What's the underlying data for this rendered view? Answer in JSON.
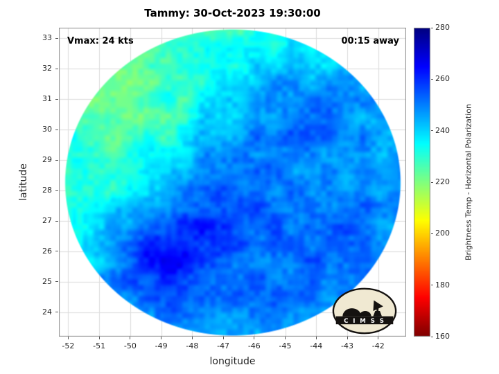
{
  "chart_data": {
    "type": "heatmap",
    "title": "Tammy: 30-Oct-2023 19:30:00",
    "xlabel": "longitude",
    "ylabel": "latitude",
    "annotations": {
      "vmax": "Vmax: 24 kts",
      "time_offset": "00:15 away"
    },
    "xlim": [
      -52.3,
      -41.1
    ],
    "ylim": [
      23.2,
      33.35
    ],
    "xticks": [
      -52,
      -51,
      -50,
      -49,
      -48,
      -47,
      -46,
      -45,
      -44,
      -43,
      -42
    ],
    "yticks": [
      24,
      25,
      26,
      27,
      28,
      29,
      30,
      31,
      32,
      33
    ],
    "grid_on": true,
    "colormap": "jet-reversed (low=dark red, high=dark blue)",
    "colorbar": {
      "label": "Brightness Temp - Horizontal Polarization",
      "min": 160,
      "max": 280,
      "ticks": [
        160,
        180,
        200,
        220,
        240,
        260,
        280
      ],
      "position": "right"
    },
    "swath_shape": "circular microwave swath filling the axes",
    "values_K": {
      "description": "Approximate brightness temperatures (K); rows from lat 33.35 (top) to 23.2 (bottom), cols from lon -52.3 (west) to -41.1 (east)",
      "rows": 12,
      "cols": 13,
      "grid": [
        [
          226,
          226,
          224,
          222,
          224,
          228,
          230,
          230,
          232,
          234,
          236,
          236,
          238
        ],
        [
          224,
          222,
          220,
          222,
          226,
          230,
          234,
          236,
          238,
          240,
          242,
          242,
          244
        ],
        [
          226,
          224,
          222,
          226,
          228,
          232,
          238,
          242,
          246,
          248,
          246,
          246,
          244
        ],
        [
          228,
          226,
          224,
          226,
          230,
          236,
          242,
          248,
          250,
          250,
          248,
          246,
          244
        ],
        [
          230,
          228,
          226,
          228,
          232,
          240,
          246,
          250,
          252,
          250,
          248,
          246,
          244
        ],
        [
          230,
          230,
          228,
          232,
          240,
          248,
          252,
          252,
          250,
          248,
          248,
          246,
          246
        ],
        [
          232,
          232,
          234,
          240,
          250,
          256,
          256,
          252,
          250,
          250,
          250,
          248,
          248
        ],
        [
          234,
          236,
          242,
          252,
          260,
          262,
          258,
          254,
          252,
          252,
          252,
          250,
          248
        ],
        [
          236,
          240,
          250,
          260,
          264,
          260,
          256,
          254,
          252,
          254,
          252,
          250,
          248
        ],
        [
          238,
          242,
          250,
          256,
          258,
          254,
          252,
          252,
          254,
          252,
          250,
          248,
          246
        ],
        [
          240,
          242,
          246,
          250,
          252,
          250,
          250,
          248,
          250,
          248,
          248,
          246,
          244
        ],
        [
          240,
          242,
          244,
          246,
          248,
          246,
          248,
          246,
          248,
          246,
          246,
          244,
          242
        ]
      ]
    }
  },
  "logo": {
    "name": "CIMSS",
    "text": "C I M S S"
  },
  "colors": {
    "background": "#ffffff",
    "grid": "#dcdcdc",
    "axes_box": "#8a8a8a",
    "logo_badge": "#f0e9d2",
    "logo_ink": "#151210"
  }
}
